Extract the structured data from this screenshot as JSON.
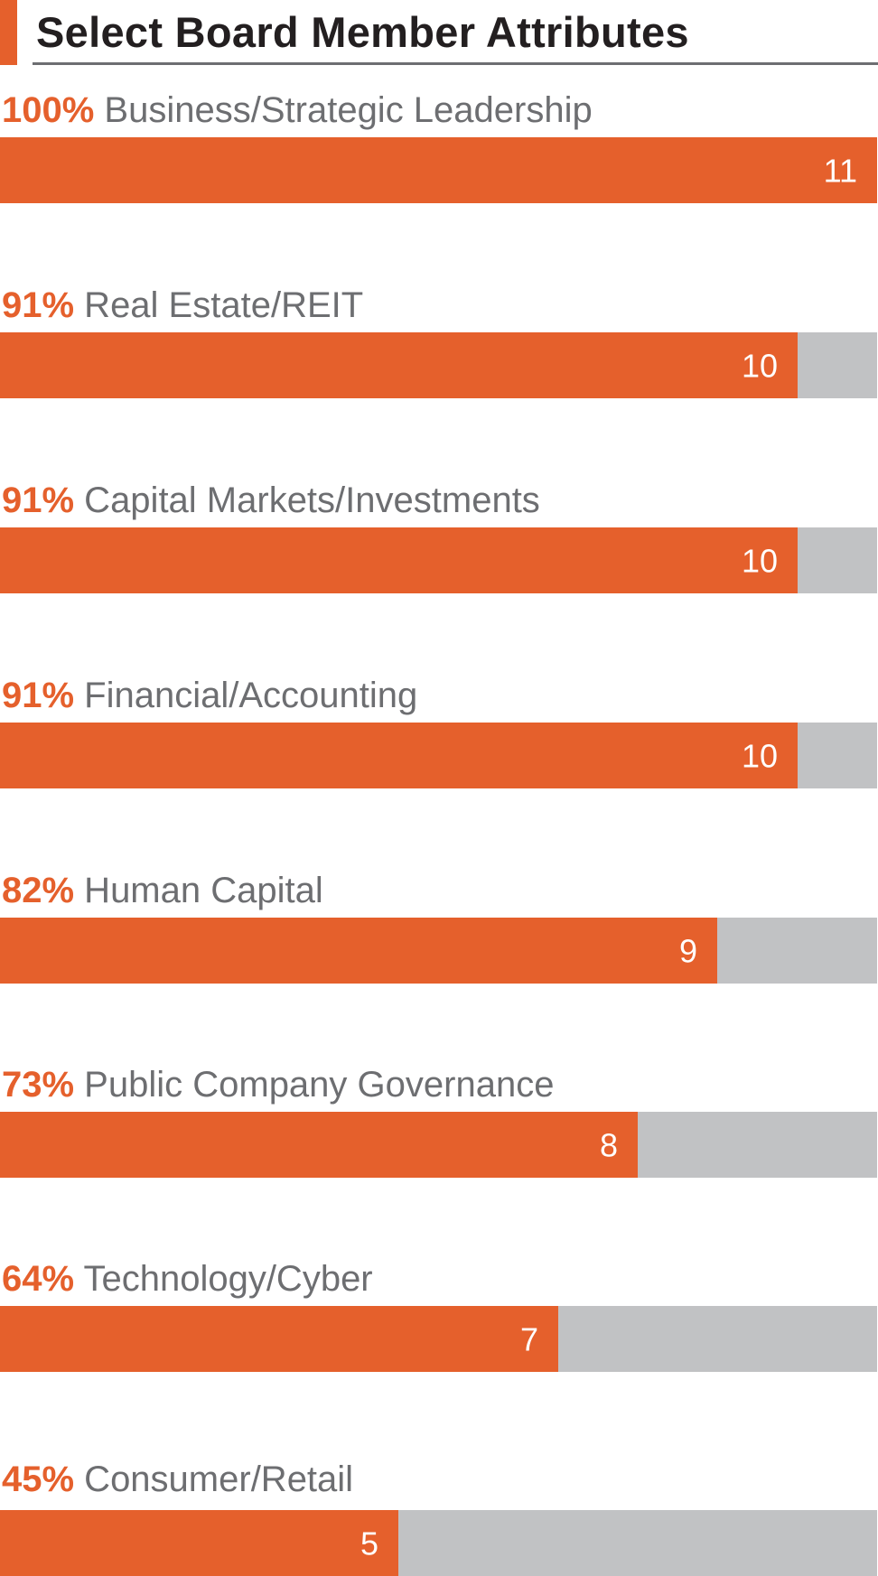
{
  "colors": {
    "accent": "#e5602c",
    "track": "#c1c2c4",
    "title_text": "#231f20",
    "label_text": "#6d6e71",
    "value_text": "#ffffff"
  },
  "chart_data": {
    "type": "bar",
    "orientation": "horizontal",
    "title": "Select Board Member Attributes",
    "max_value": 11,
    "xlim": [
      0,
      11
    ],
    "grid": false,
    "legend": "none",
    "categories": [
      "Business/Strategic Leadership",
      "Real Estate/REIT",
      "Capital Markets/Investments",
      "Financial/Accounting",
      "Human Capital",
      "Public Company Governance",
      "Technology/Cyber",
      "Consumer/Retail"
    ],
    "percent_labels": [
      "100%",
      "91%",
      "91%",
      "91%",
      "82%",
      "73%",
      "64%",
      "45%"
    ],
    "values": [
      11,
      10,
      10,
      10,
      9,
      8,
      7,
      5
    ]
  }
}
